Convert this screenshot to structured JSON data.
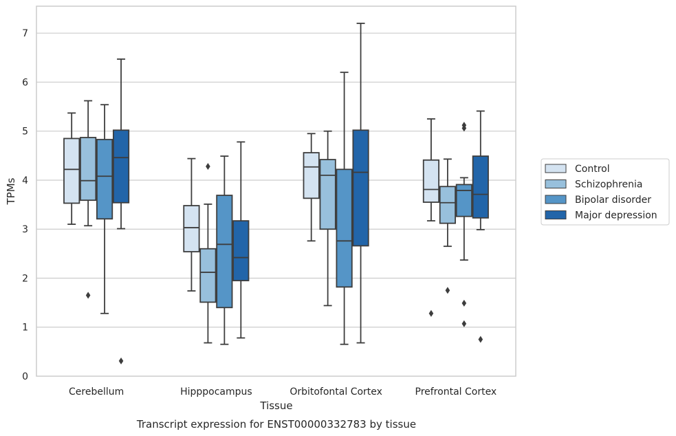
{
  "caption": "Transcript expression for ENST00000332783 by tissue",
  "chart_data": {
    "type": "boxplot",
    "xlabel": "Tissue",
    "ylabel": "TPMs",
    "ylim": [
      0,
      7.55
    ],
    "yticks": [
      0,
      1,
      2,
      3,
      4,
      5,
      6,
      7
    ],
    "grid": "horizontal",
    "legend_position": "right",
    "categories": [
      "Cerebellum",
      "Hipppocampus",
      "Orbitofontal Cortex",
      "Prefrontal Cortex"
    ],
    "series": [
      {
        "name": "Control",
        "color": "#d4e3f1",
        "boxes": [
          {
            "whislo": 3.1,
            "q1": 3.53,
            "med": 4.22,
            "q3": 4.85,
            "whishi": 5.37,
            "fliers": []
          },
          {
            "whislo": 1.74,
            "q1": 2.54,
            "med": 3.03,
            "q3": 3.48,
            "whishi": 4.44,
            "fliers": []
          },
          {
            "whislo": 2.76,
            "q1": 3.63,
            "med": 4.27,
            "q3": 4.56,
            "whishi": 4.95,
            "fliers": []
          },
          {
            "whislo": 3.17,
            "q1": 3.55,
            "med": 3.81,
            "q3": 4.41,
            "whishi": 5.25,
            "fliers": [
              1.28
            ]
          }
        ]
      },
      {
        "name": "Schizophrenia",
        "color": "#98c0dc",
        "boxes": [
          {
            "whislo": 3.07,
            "q1": 3.59,
            "med": 3.99,
            "q3": 4.87,
            "whishi": 5.62,
            "fliers": [
              1.65
            ]
          },
          {
            "whislo": 0.68,
            "q1": 1.51,
            "med": 2.12,
            "q3": 2.6,
            "whishi": 3.51,
            "fliers": [
              4.28
            ]
          },
          {
            "whislo": 1.44,
            "q1": 3.0,
            "med": 4.1,
            "q3": 4.42,
            "whishi": 5.0,
            "fliers": []
          },
          {
            "whislo": 2.65,
            "q1": 3.12,
            "med": 3.54,
            "q3": 3.87,
            "whishi": 4.43,
            "fliers": [
              1.75
            ]
          }
        ]
      },
      {
        "name": "Bipolar disorder",
        "color": "#5595c7",
        "boxes": [
          {
            "whislo": 1.28,
            "q1": 3.21,
            "med": 4.08,
            "q3": 4.83,
            "whishi": 5.54,
            "fliers": []
          },
          {
            "whislo": 0.65,
            "q1": 1.4,
            "med": 2.69,
            "q3": 3.69,
            "whishi": 4.49,
            "fliers": []
          },
          {
            "whislo": 0.65,
            "q1": 1.82,
            "med": 2.76,
            "q3": 4.22,
            "whishi": 6.2,
            "fliers": []
          },
          {
            "whislo": 2.37,
            "q1": 3.26,
            "med": 3.79,
            "q3": 3.91,
            "whishi": 4.05,
            "fliers": [
              5.06,
              5.12,
              1.49,
              1.07
            ]
          }
        ]
      },
      {
        "name": "Major depression",
        "color": "#2265a9",
        "boxes": [
          {
            "whislo": 3.01,
            "q1": 3.54,
            "med": 4.46,
            "q3": 5.02,
            "whishi": 6.47,
            "fliers": [
              0.31
            ]
          },
          {
            "whislo": 0.78,
            "q1": 1.95,
            "med": 2.42,
            "q3": 3.17,
            "whishi": 4.78,
            "fliers": []
          },
          {
            "whislo": 0.68,
            "q1": 2.66,
            "med": 4.16,
            "q3": 5.02,
            "whishi": 7.2,
            "fliers": []
          },
          {
            "whislo": 2.99,
            "q1": 3.23,
            "med": 3.71,
            "q3": 4.49,
            "whishi": 5.41,
            "fliers": [
              0.75
            ]
          }
        ]
      }
    ]
  }
}
